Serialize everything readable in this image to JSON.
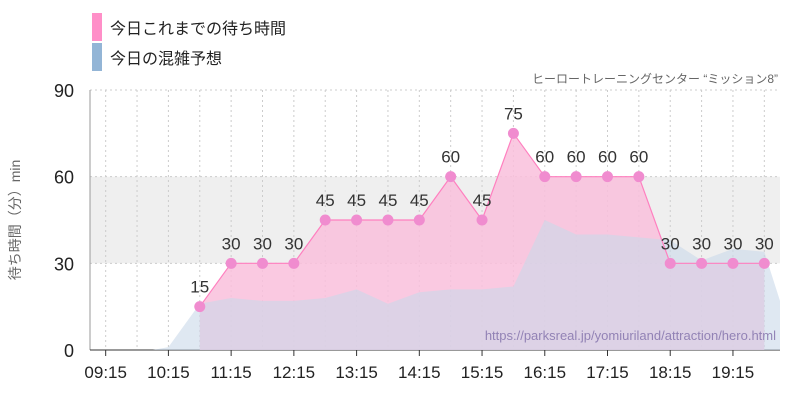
{
  "legend": {
    "today_label": "今日これまでの待ち時間",
    "forecast_label": "今日の混雑予想"
  },
  "subtitle": "ヒーロートレーニングセンター “ミッション8”",
  "watermark": "https://parksreal.jp/yomiuriland/attraction/hero.html",
  "colors": {
    "actual_line": "#ff7fbf",
    "actual_fill": "#f9bfdc",
    "actual_marker": "#f08ccf",
    "forecast_fill": "#c9d9ea",
    "forecast_swatch": "#93b5d6",
    "band": "#efefef",
    "grid": "#cccccc"
  },
  "chart_data": {
    "type": "area",
    "ylabel": "待ち時間（分）min",
    "ylim": [
      0,
      90
    ],
    "yticks": [
      0,
      30,
      60,
      90
    ],
    "xlim": [
      "09:00",
      "20:00"
    ],
    "xticks": [
      "09:15",
      "10:15",
      "11:15",
      "12:15",
      "13:15",
      "14:15",
      "15:15",
      "16:15",
      "17:15",
      "18:15",
      "19:15"
    ],
    "band": [
      30,
      60
    ],
    "series": [
      {
        "name": "今日これまでの待ち時間",
        "points": [
          {
            "t": "10:45",
            "v": 15
          },
          {
            "t": "11:15",
            "v": 30
          },
          {
            "t": "11:45",
            "v": 30
          },
          {
            "t": "12:15",
            "v": 30
          },
          {
            "t": "12:45",
            "v": 45
          },
          {
            "t": "13:15",
            "v": 45
          },
          {
            "t": "13:45",
            "v": 45
          },
          {
            "t": "14:15",
            "v": 45
          },
          {
            "t": "14:45",
            "v": 60
          },
          {
            "t": "15:15",
            "v": 45
          },
          {
            "t": "15:45",
            "v": 75
          },
          {
            "t": "16:15",
            "v": 60
          },
          {
            "t": "16:45",
            "v": 60
          },
          {
            "t": "17:15",
            "v": 60
          },
          {
            "t": "17:45",
            "v": 60
          },
          {
            "t": "18:15",
            "v": 30
          },
          {
            "t": "18:45",
            "v": 30
          },
          {
            "t": "19:15",
            "v": 30
          },
          {
            "t": "19:45",
            "v": 30
          }
        ]
      },
      {
        "name": "今日の混雑予想",
        "points": [
          {
            "t": "09:00",
            "v": 0
          },
          {
            "t": "09:30",
            "v": 0
          },
          {
            "t": "10:00",
            "v": 0
          },
          {
            "t": "10:15",
            "v": 1
          },
          {
            "t": "10:45",
            "v": 16
          },
          {
            "t": "11:15",
            "v": 18
          },
          {
            "t": "11:45",
            "v": 17
          },
          {
            "t": "12:15",
            "v": 17
          },
          {
            "t": "12:45",
            "v": 18
          },
          {
            "t": "13:15",
            "v": 21
          },
          {
            "t": "13:45",
            "v": 16
          },
          {
            "t": "14:15",
            "v": 20
          },
          {
            "t": "14:45",
            "v": 21
          },
          {
            "t": "15:15",
            "v": 21
          },
          {
            "t": "15:45",
            "v": 22
          },
          {
            "t": "16:15",
            "v": 45
          },
          {
            "t": "16:45",
            "v": 40
          },
          {
            "t": "17:15",
            "v": 40
          },
          {
            "t": "17:45",
            "v": 39
          },
          {
            "t": "18:15",
            "v": 38
          },
          {
            "t": "18:45",
            "v": 31
          },
          {
            "t": "19:15",
            "v": 35
          },
          {
            "t": "19:45",
            "v": 34
          },
          {
            "t": "20:00",
            "v": 17
          }
        ]
      }
    ]
  }
}
